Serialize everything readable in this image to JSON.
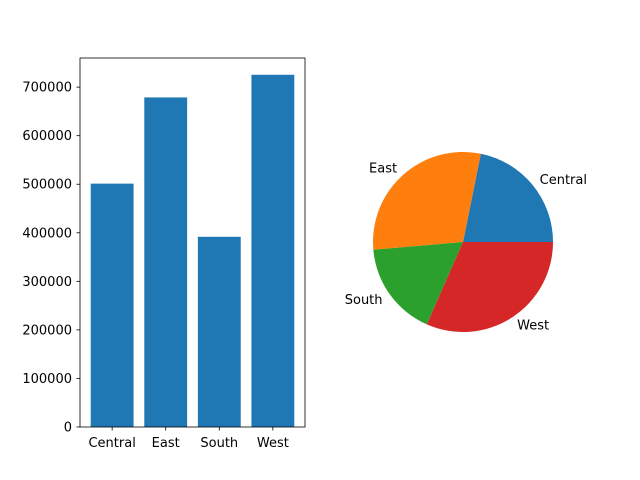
{
  "chart_data": [
    {
      "type": "bar",
      "categories": [
        "Central",
        "East",
        "South",
        "West"
      ],
      "values": [
        501240,
        678781,
        391722,
        725458
      ],
      "ylim": [
        0,
        760000
      ],
      "yticks": [
        0,
        100000,
        200000,
        300000,
        400000,
        500000,
        600000,
        700000
      ],
      "color": "#1f77b4",
      "grid": false
    },
    {
      "type": "pie",
      "labels": [
        "Central",
        "East",
        "South",
        "West"
      ],
      "values": [
        501240,
        678781,
        391722,
        725458
      ],
      "colors": [
        "#1f77b4",
        "#ff7f0e",
        "#2ca02c",
        "#d62728"
      ],
      "start_angle": 0,
      "direction": "counterclockwise"
    }
  ]
}
